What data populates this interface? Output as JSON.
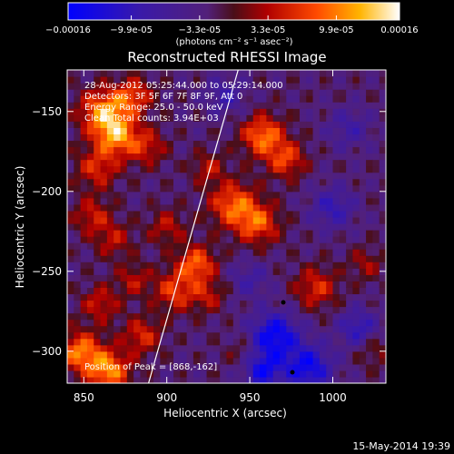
{
  "chart_data": {
    "type": "heatmap",
    "title": "Reconstructed RHESSI Image",
    "xlabel": "Heliocentric X (arcsec)",
    "ylabel": "Heliocentric Y (arcsec)",
    "xlim": [
      840,
      1032
    ],
    "ylim": [
      -320,
      -124
    ],
    "x_ticks": [
      850,
      900,
      950,
      1000
    ],
    "y_ticks": [
      -300,
      -250,
      -200,
      -150
    ],
    "x_tick_labels": [
      "850",
      "900",
      "950",
      "1000"
    ],
    "y_tick_labels": [
      "-300",
      "-250",
      "-200",
      "-150"
    ],
    "colorbar": {
      "min": -0.00016,
      "max": 0.00016,
      "tick_values": [
        -0.00016,
        -9.9e-05,
        -3.3e-05,
        3.3e-05,
        9.9e-05,
        0.00016
      ],
      "tick_labels": [
        "-0.00016",
        "-9.9e-05",
        "-3.3e-05",
        "3.3e-05",
        "9.9e-05",
        "0.00016"
      ],
      "units_label": "(photons cm⁻² s⁻¹ asec⁻²)"
    },
    "annotations": {
      "time_range": "28-Aug-2012 05:25:44.000 to 05:29:14.000",
      "detectors": "Detectors: 3F 5F 6F 7F 8F 9F, Att 0",
      "energy_range": "Energy Range: 25.0 - 50.0 keV",
      "algorithm": "Clean    Total counts: 3.94E+03",
      "peak": "Position of Peak = [868,-162]"
    },
    "limb": {
      "x_at_top": 943,
      "x_at_bottom": 889
    },
    "blobs": [
      {
        "x": 862,
        "y": -150,
        "v": 0.00013,
        "r": 10
      },
      {
        "x": 870,
        "y": -165,
        "v": 0.00012,
        "r": 9
      },
      {
        "x": 858,
        "y": -185,
        "v": 8e-05,
        "r": 9
      },
      {
        "x": 880,
        "y": -140,
        "v": 9e-05,
        "r": 8
      },
      {
        "x": 888,
        "y": -172,
        "v": 7e-05,
        "r": 8
      },
      {
        "x": 855,
        "y": -215,
        "v": 7e-05,
        "r": 8
      },
      {
        "x": 868,
        "y": -230,
        "v": 6e-05,
        "r": 8
      },
      {
        "x": 900,
        "y": -222,
        "v": 6e-05,
        "r": 8
      },
      {
        "x": 918,
        "y": -245,
        "v": 0.00011,
        "r": 8
      },
      {
        "x": 905,
        "y": -262,
        "v": 9e-05,
        "r": 9
      },
      {
        "x": 925,
        "y": -265,
        "v": 6e-05,
        "r": 7
      },
      {
        "x": 940,
        "y": -208,
        "v": 0.00011,
        "r": 10
      },
      {
        "x": 955,
        "y": -220,
        "v": 0.0001,
        "r": 9
      },
      {
        "x": 958,
        "y": -165,
        "v": 0.00012,
        "r": 9
      },
      {
        "x": 972,
        "y": -180,
        "v": 9e-05,
        "r": 8
      },
      {
        "x": 925,
        "y": -185,
        "v": 6e-05,
        "r": 7
      },
      {
        "x": 990,
        "y": -260,
        "v": 8e-05,
        "r": 9
      },
      {
        "x": 1020,
        "y": -245,
        "v": 5e-05,
        "r": 7
      },
      {
        "x": 860,
        "y": -270,
        "v": 7e-05,
        "r": 8
      },
      {
        "x": 848,
        "y": -300,
        "v": 0.00012,
        "r": 9
      },
      {
        "x": 865,
        "y": -312,
        "v": 0.00013,
        "r": 9
      },
      {
        "x": 885,
        "y": -290,
        "v": 8e-05,
        "r": 8
      },
      {
        "x": 880,
        "y": -255,
        "v": 6e-05,
        "r": 7
      },
      {
        "x": 1025,
        "y": -300,
        "v": 4e-05,
        "r": 7
      },
      {
        "x": 945,
        "y": -300,
        "v": 3e-05,
        "r": 7
      },
      {
        "x": 965,
        "y": -290,
        "v": -0.00013,
        "r": 10
      },
      {
        "x": 985,
        "y": -310,
        "v": -0.00012,
        "r": 10
      },
      {
        "x": 958,
        "y": -312,
        "v": -0.00011,
        "r": 8
      },
      {
        "x": 1000,
        "y": -210,
        "v": -7e-05,
        "r": 9
      },
      {
        "x": 1010,
        "y": -160,
        "v": -5e-05,
        "r": 9
      },
      {
        "x": 1015,
        "y": -285,
        "v": -8e-05,
        "r": 8
      },
      {
        "x": 935,
        "y": -140,
        "v": -6e-05,
        "r": 8
      },
      {
        "x": 950,
        "y": -255,
        "v": -5e-05,
        "r": 8
      }
    ]
  },
  "footer": {
    "date": "15-May-2014 19:39"
  }
}
